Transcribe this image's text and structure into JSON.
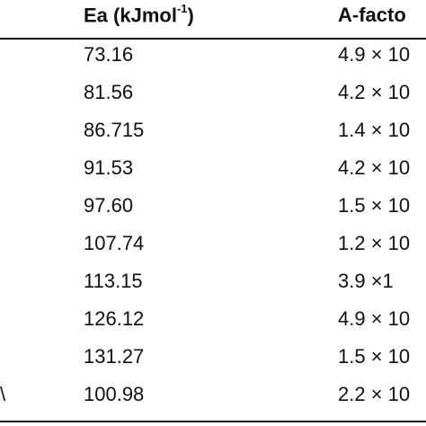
{
  "table": {
    "headers": {
      "ea_main": "Ea (kJmol",
      "ea_sup": "-1",
      "ea_close": ")",
      "a_factor": "A-facto"
    },
    "rows": [
      {
        "label": "",
        "ea": "73.16",
        "a": "4.9 × 10"
      },
      {
        "label": "",
        "ea": "81.56",
        "a": "4.2 × 10"
      },
      {
        "label": "",
        "ea": "86.715",
        "a": "1.4 × 10"
      },
      {
        "label": "",
        "ea": "91.53",
        "a": "4.2 × 10"
      },
      {
        "label": "",
        "ea": "97.60",
        "a": "1.5 × 10"
      },
      {
        "label": "",
        "ea": "107.74",
        "a": "1.2 × 10"
      },
      {
        "label": "",
        "ea": "113.15",
        "a": "3.9 ×1"
      },
      {
        "label": "",
        "ea": "126.12",
        "a": "4.9 × 10"
      },
      {
        "label": "",
        "ea": "131.27",
        "a": "1.5 × 10"
      },
      {
        "label": "\\",
        "ea": "100.98",
        "a": "2.2 × 10"
      }
    ]
  }
}
